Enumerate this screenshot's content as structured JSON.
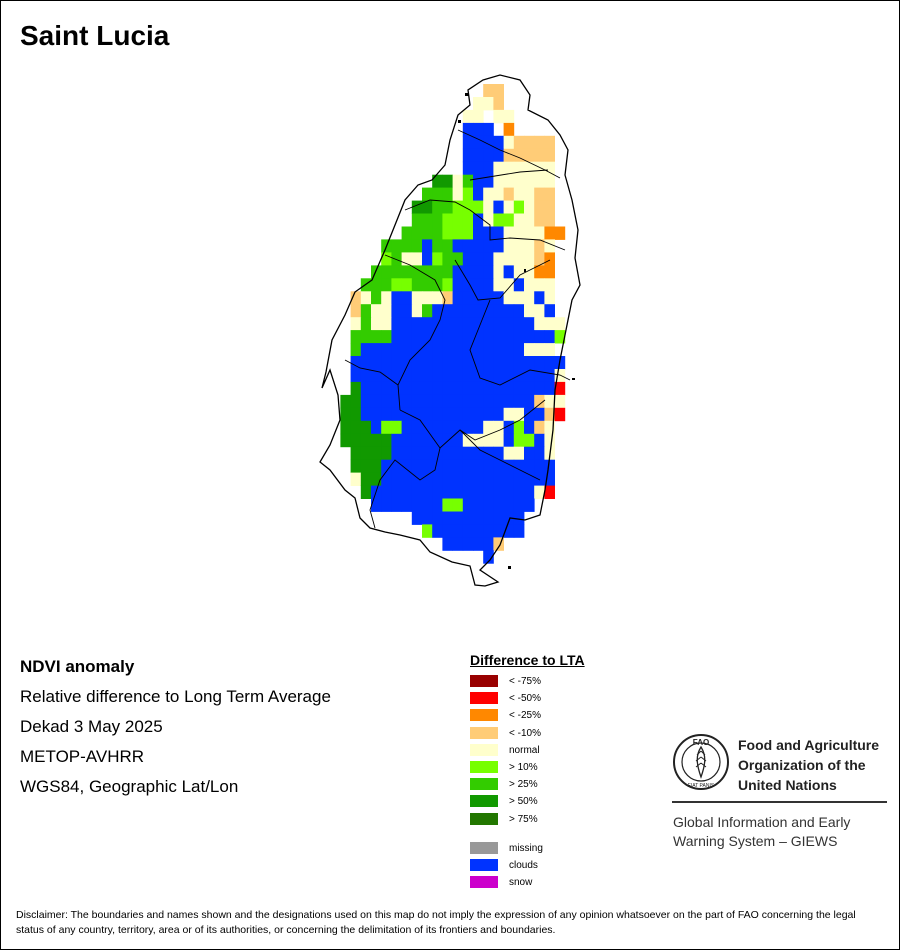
{
  "title": "Saint Lucia",
  "info": {
    "line1": "NDVI anomaly",
    "line2": "Relative difference to Long Term Average",
    "line3": "Dekad 3 May 2025",
    "line4": "METOP-AVHRR",
    "line5": "WGS84, Geographic Lat/Lon"
  },
  "legend": {
    "title": "Difference to LTA",
    "classes": [
      {
        "label": "< -75%",
        "color": "#990000"
      },
      {
        "label": "< -50%",
        "color": "#ff0000"
      },
      {
        "label": "< -25%",
        "color": "#ff8800"
      },
      {
        "label": "< -10%",
        "color": "#ffcc77"
      },
      {
        "label": "normal",
        "color": "#ffffcc"
      },
      {
        "label": "> 10%",
        "color": "#77ff00"
      },
      {
        "label": "> 25%",
        "color": "#33cc00"
      },
      {
        "label": "> 50%",
        "color": "#119900"
      },
      {
        "label": "> 75%",
        "color": "#227700"
      }
    ],
    "special": [
      {
        "label": "missing",
        "color": "#999999"
      },
      {
        "label": "clouds",
        "color": "#0033ff"
      },
      {
        "label": "snow",
        "color": "#cc00cc"
      }
    ]
  },
  "org": {
    "name_line1": "Food and Agriculture",
    "name_line2": "Organization of the",
    "name_line3": "United Nations",
    "logo_text": "FAO",
    "logo_motto": "FIAT PANIS",
    "system_line1": "Global Information and Early",
    "system_line2": "Warning System – GIEWS"
  },
  "disclaimer": "Disclaimer: The boundaries and names shown and the designations used on this map do not imply the expression of any opinion whatsoever on the part of FAO concerning the legal status of any country, territory, area or of its authorities, or concerning the delimitation of its frontiers and boundaries."
}
